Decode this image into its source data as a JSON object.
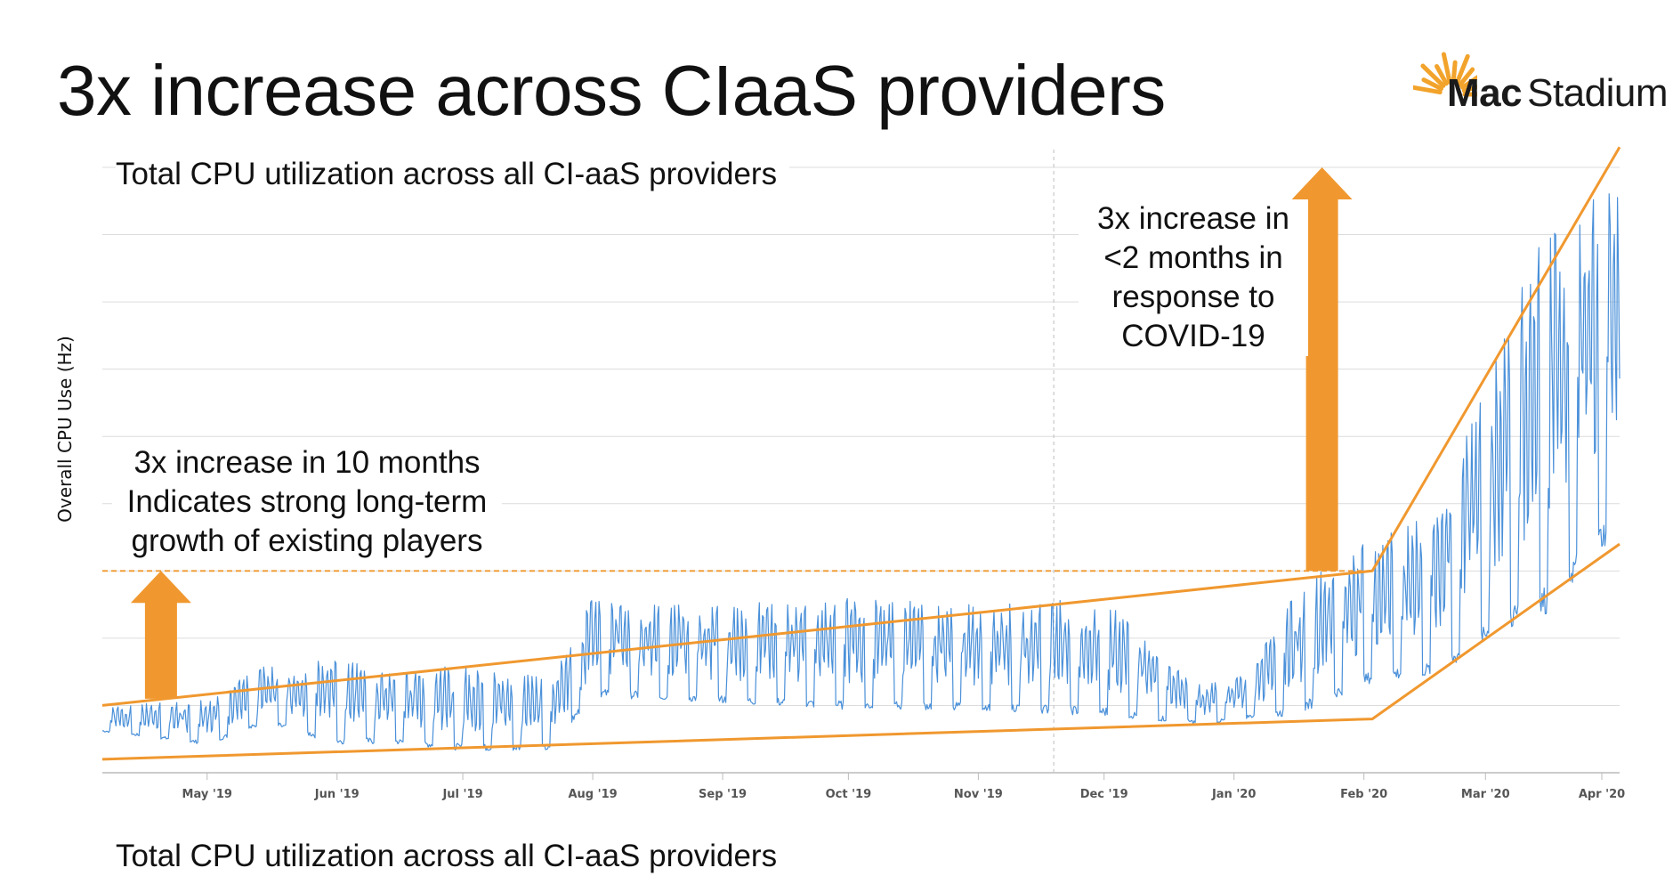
{
  "slide": {
    "title": "3x increase across CIaaS providers",
    "subtitle_top": "Total CPU utilization across all CI-aaS providers",
    "subtitle_bottom": "Total CPU utilization across all CI-aaS providers"
  },
  "logo": {
    "mac": "Mac",
    "stadium": "Stadium",
    "accent_color": "#f2a32b"
  },
  "annotations": {
    "left": [
      "3x increase in 10 months",
      "Indicates strong long-term",
      "growth of existing players"
    ],
    "right": [
      "3x increase in",
      "<2 months in",
      "response to",
      "COVID-19"
    ]
  },
  "chart_data": {
    "type": "line",
    "ylabel": "Overall CPU Use (Hz)",
    "xlabel": "",
    "grid": true,
    "x_ticks": [
      "May '19",
      "Jun '19",
      "Jul '19",
      "Aug '19",
      "Sep '19",
      "Oct '19",
      "Nov '19",
      "Dec '19",
      "Jan '20",
      "Feb '20",
      "Mar '20",
      "Apr '20"
    ],
    "x_range": [
      "2019-04-06",
      "2020-04-02"
    ],
    "y_range": [
      0,
      9
    ],
    "series": [
      {
        "color": "#4a90d9",
        "shape": "daily cycle with weekday peaks and weekend dips",
        "points": [
          {
            "date": "2019-04-06",
            "low": 0.6,
            "high": 1.0
          },
          {
            "date": "2019-05-01",
            "low": 0.4,
            "high": 1.1
          },
          {
            "date": "2019-05-15",
            "low": 0.7,
            "high": 1.6
          },
          {
            "date": "2019-06-01",
            "low": 0.4,
            "high": 1.7
          },
          {
            "date": "2019-06-15",
            "low": 0.4,
            "high": 1.5
          },
          {
            "date": "2019-07-01",
            "low": 0.3,
            "high": 1.6
          },
          {
            "date": "2019-07-22",
            "low": 0.3,
            "high": 1.4
          },
          {
            "date": "2019-08-01",
            "low": 1.1,
            "high": 2.6
          },
          {
            "date": "2019-09-01",
            "low": 1.0,
            "high": 2.5
          },
          {
            "date": "2019-10-01",
            "low": 0.9,
            "high": 2.6
          },
          {
            "date": "2019-11-01",
            "low": 0.9,
            "high": 2.5
          },
          {
            "date": "2019-12-01",
            "low": 0.8,
            "high": 2.6
          },
          {
            "date": "2019-12-25",
            "low": 0.7,
            "high": 1.3
          },
          {
            "date": "2020-01-05",
            "low": 0.8,
            "high": 1.5
          },
          {
            "date": "2020-01-15",
            "low": 0.8,
            "high": 2.7
          },
          {
            "date": "2020-02-03",
            "low": 1.3,
            "high": 3.5
          },
          {
            "date": "2020-02-20",
            "low": 1.4,
            "high": 4.1
          },
          {
            "date": "2020-03-01",
            "low": 1.9,
            "high": 6.0
          },
          {
            "date": "2020-03-15",
            "low": 2.2,
            "high": 8.0
          },
          {
            "date": "2020-04-02",
            "low": 3.5,
            "high": 8.8
          }
        ]
      }
    ],
    "trend_lines": {
      "color": "#f0982f",
      "lower": [
        {
          "date": "2019-04-06",
          "y": 0.2
        },
        {
          "date": "2020-02-03",
          "y": 0.8
        },
        {
          "date": "2020-04-02",
          "y": 3.4
        }
      ],
      "upper": [
        {
          "date": "2019-04-06",
          "y": 1.0
        },
        {
          "date": "2020-02-03",
          "y": 3.0
        },
        {
          "date": "2020-04-02",
          "y": 9.3
        }
      ],
      "reference_level_y": 3.0
    },
    "annotation_arrows": [
      {
        "date": "2019-04-20",
        "from_y": 1.1,
        "to_y": 3.0
      },
      {
        "date": "2020-01-22",
        "from_y": 3.0,
        "to_y": 9.0
      }
    ],
    "today_marker_date": "2019-11-19"
  }
}
